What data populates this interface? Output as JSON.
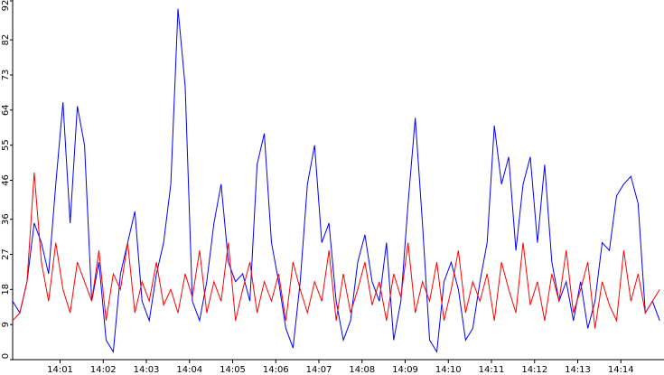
{
  "chart_data": {
    "type": "line",
    "x": [
      -6,
      4,
      14,
      24,
      34,
      44,
      54,
      64,
      74,
      84,
      94,
      104,
      114,
      124,
      134,
      144,
      154,
      164,
      174,
      184,
      194,
      204,
      214,
      224,
      234,
      244,
      254,
      264,
      274,
      284,
      294,
      304,
      314,
      324,
      334,
      344,
      354,
      364,
      374,
      384,
      394,
      404,
      414,
      424,
      434,
      444,
      454,
      464,
      474,
      484,
      494,
      504,
      514,
      524,
      534,
      544,
      554,
      564,
      574,
      584,
      594,
      604,
      614,
      624,
      634,
      644,
      654,
      664,
      674,
      684,
      694,
      704,
      714,
      724,
      734,
      744,
      754,
      764,
      774,
      784,
      794,
      804,
      814,
      824,
      834,
      844,
      854,
      864,
      874,
      884,
      894
    ],
    "series": [
      {
        "name": "blue",
        "color": "#0000ff",
        "values": [
          15,
          12,
          20,
          35,
          30,
          22,
          45,
          66,
          35,
          65,
          55,
          15,
          25,
          5,
          2,
          22,
          30,
          38,
          15,
          10,
          22,
          30,
          45,
          90,
          70,
          15,
          10,
          20,
          35,
          45,
          25,
          20,
          22,
          15,
          50,
          58,
          30,
          20,
          8,
          3,
          20,
          45,
          55,
          30,
          35,
          15,
          5,
          10,
          25,
          32,
          20,
          15,
          30,
          5,
          15,
          40,
          62,
          35,
          5,
          2,
          20,
          25,
          18,
          5,
          8,
          20,
          30,
          60,
          45,
          52,
          28,
          45,
          52,
          30,
          50,
          25,
          15,
          20,
          10,
          20,
          8,
          15,
          30,
          28,
          42,
          45,
          47,
          40,
          12,
          15,
          10
        ]
      },
      {
        "name": "red",
        "color": "#ff0000",
        "values": [
          10,
          12,
          20,
          48,
          25,
          15,
          30,
          18,
          12,
          25,
          20,
          15,
          28,
          10,
          22,
          18,
          30,
          12,
          20,
          15,
          25,
          14,
          18,
          12,
          22,
          16,
          28,
          12,
          20,
          15,
          30,
          10,
          18,
          25,
          12,
          20,
          15,
          22,
          10,
          25,
          18,
          12,
          20,
          15,
          28,
          10,
          22,
          12,
          18,
          25,
          14,
          20,
          10,
          22,
          16,
          30,
          12,
          20,
          15,
          25,
          10,
          18,
          28,
          12,
          20,
          15,
          22,
          10,
          25,
          18,
          12,
          30,
          14,
          20,
          10,
          22,
          15,
          28,
          12,
          18,
          25,
          8,
          20,
          14,
          10,
          28,
          15,
          22,
          12,
          15,
          18
        ]
      }
    ],
    "xlim": [
      -6,
      900
    ],
    "xticks": [
      {
        "value": 60,
        "label": "14:01"
      },
      {
        "value": 120,
        "label": "14:02"
      },
      {
        "value": 180,
        "label": "14:03"
      },
      {
        "value": 240,
        "label": "14:04"
      },
      {
        "value": 300,
        "label": "14:05"
      },
      {
        "value": 360,
        "label": "14:06"
      },
      {
        "value": 420,
        "label": "14:07"
      },
      {
        "value": 480,
        "label": "14:08"
      },
      {
        "value": 540,
        "label": "14:09"
      },
      {
        "value": 600,
        "label": "14:10"
      },
      {
        "value": 660,
        "label": "14:11"
      },
      {
        "value": 720,
        "label": "14:12"
      },
      {
        "value": 780,
        "label": "14:13"
      },
      {
        "value": 840,
        "label": "14:14"
      }
    ],
    "ylim": [
      0,
      92
    ],
    "yticks": [
      0,
      9,
      18,
      27,
      36,
      46,
      55,
      64,
      73,
      82,
      92
    ]
  }
}
